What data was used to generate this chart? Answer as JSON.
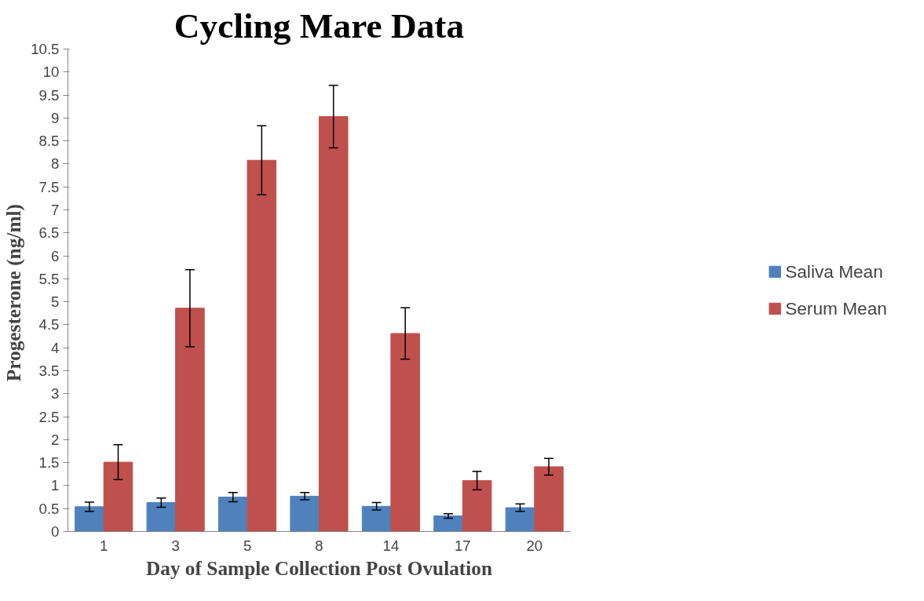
{
  "chart_data": {
    "type": "bar",
    "title": "Cycling Mare Data",
    "xlabel": "Day of Sample Collection Post Ovulation",
    "ylabel": "Progesterone  (ng/ml)",
    "categories": [
      "1",
      "3",
      "5",
      "8",
      "14",
      "17",
      "20"
    ],
    "series": [
      {
        "name": "Saliva Mean",
        "color": "#4f81bd",
        "values": [
          0.54,
          0.63,
          0.75,
          0.77,
          0.55,
          0.34,
          0.52
        ],
        "errors": [
          0.1,
          0.1,
          0.1,
          0.08,
          0.08,
          0.05,
          0.08
        ]
      },
      {
        "name": "Serum Mean",
        "color": "#c0504d",
        "values": [
          1.51,
          4.86,
          8.08,
          9.03,
          4.31,
          1.11,
          1.41
        ],
        "errors": [
          0.38,
          0.84,
          0.75,
          0.68,
          0.56,
          0.2,
          0.18
        ]
      }
    ],
    "ylim": [
      0,
      10.5
    ],
    "yticks": [
      0,
      0.5,
      1,
      1.5,
      2,
      2.5,
      3,
      3.5,
      4,
      4.5,
      5,
      5.5,
      6,
      6.5,
      7,
      7.5,
      8,
      8.5,
      9,
      9.5,
      10,
      10.5
    ],
    "grid": false,
    "legend": "right"
  }
}
